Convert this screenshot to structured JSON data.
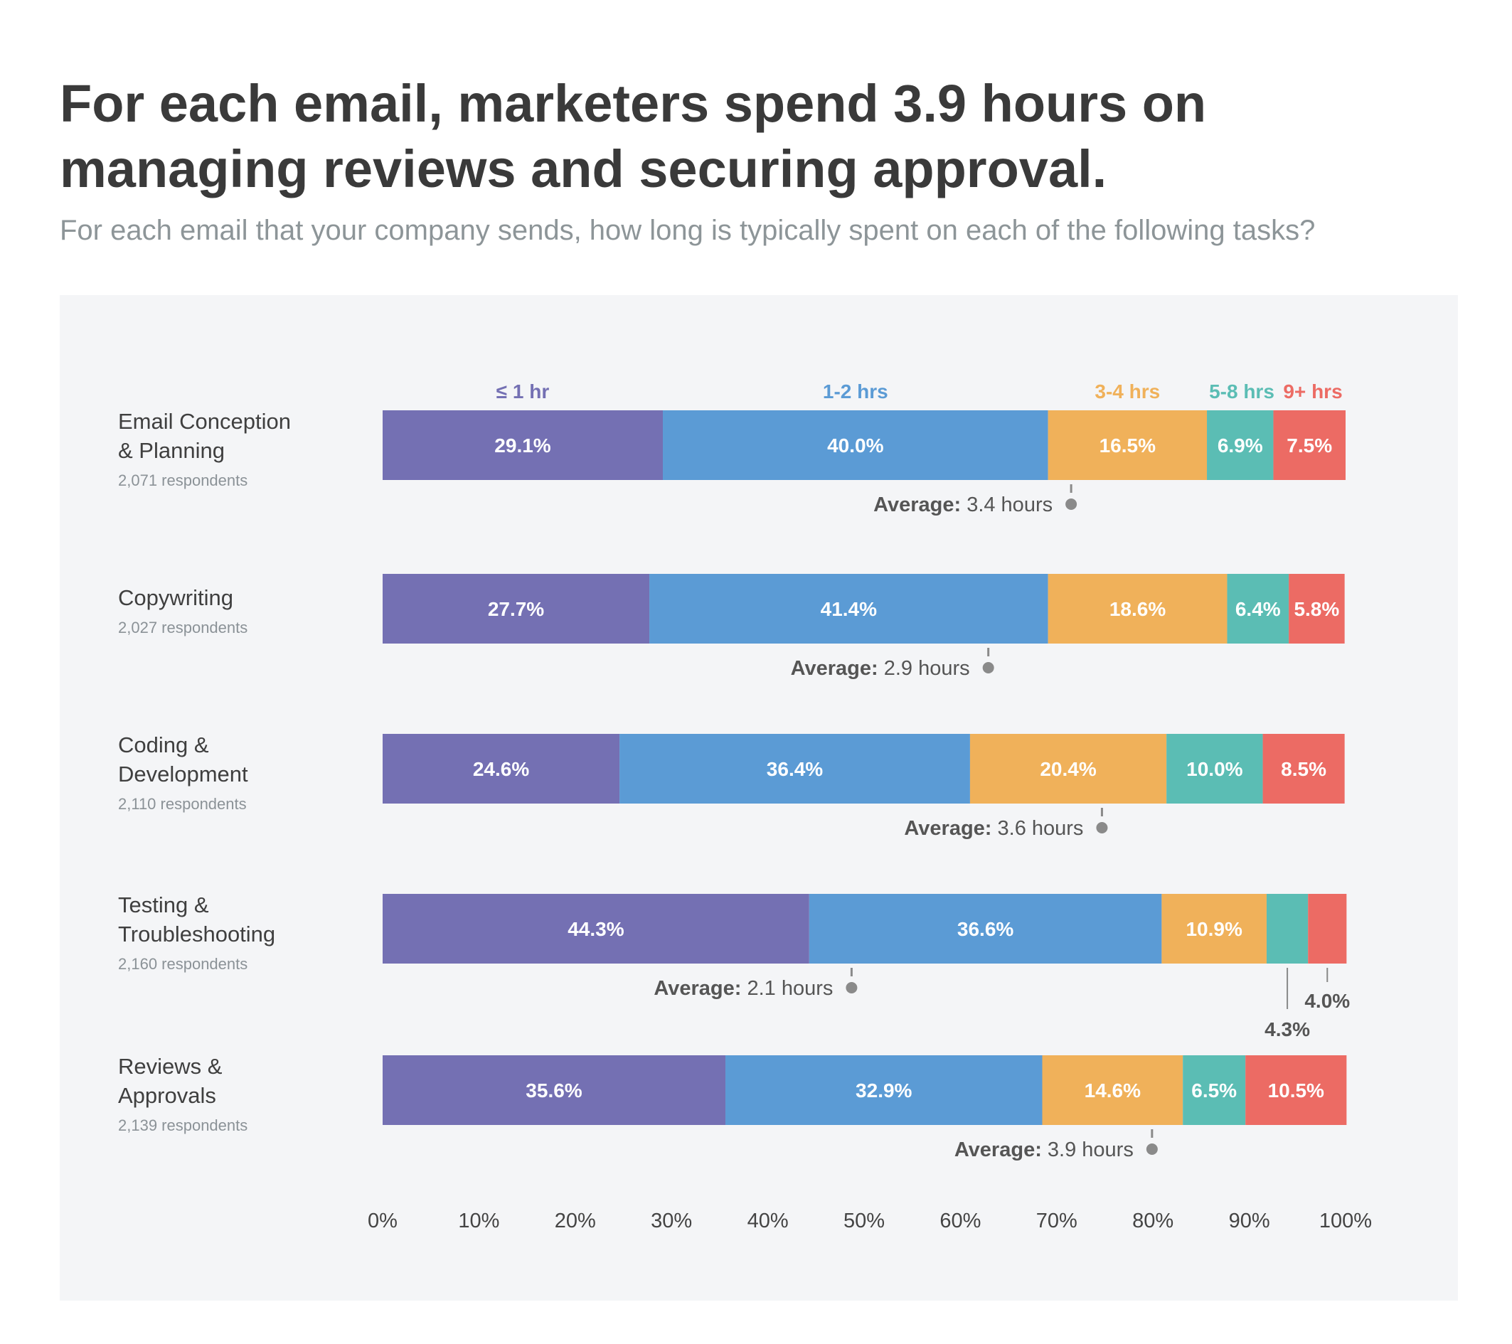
{
  "title": "For each email, marketers spend 3.9 hours on managing reviews and securing approval.",
  "subtitle": "For each email that your company sends, how long is typically spent on each of the following tasks?",
  "colors": {
    "le1hr": "#7470b3",
    "h1to2": "#5b9bd5",
    "h3to4": "#f0b15a",
    "h5to8": "#5bbdb4",
    "h9plus": "#ec6b64"
  },
  "average_label": "Average:",
  "chart_data": {
    "type": "bar",
    "orientation": "horizontal",
    "stacked": true,
    "title": "For each email, marketers spend 3.9 hours on managing reviews and securing approval.",
    "subtitle": "For each email that your company sends, how long is typically spent on each of the following tasks?",
    "legend_position": "top",
    "xlim": [
      0,
      100
    ],
    "x_ticks": [
      "0%",
      "10%",
      "20%",
      "30%",
      "40%",
      "50%",
      "60%",
      "70%",
      "80%",
      "90%",
      "100%"
    ],
    "categories": [
      {
        "name_lines": [
          "Email Conception",
          "& Planning"
        ],
        "respondents": "2,071 respondents",
        "average": "3.4 hours",
        "average_pos": 71.5
      },
      {
        "name_lines": [
          "Copywriting"
        ],
        "respondents": "2,027 respondents",
        "average": "2.9 hours",
        "average_pos": 62.9
      },
      {
        "name_lines": [
          "Coding &",
          "Development"
        ],
        "respondents": "2,110 respondents",
        "average": "3.6 hours",
        "average_pos": 74.7
      },
      {
        "name_lines": [
          "Testing &",
          "Troubleshooting"
        ],
        "respondents": "2,160 respondents",
        "average": "2.1 hours",
        "average_pos": 48.7
      },
      {
        "name_lines": [
          "Reviews &",
          "Approvals"
        ],
        "respondents": "2,139 respondents",
        "average": "3.9 hours",
        "average_pos": 79.9
      }
    ],
    "series": [
      {
        "name": "≤ 1 hr",
        "color": "#7470b3",
        "values": [
          29.1,
          27.7,
          24.6,
          44.3,
          35.6
        ],
        "labels": [
          "29.1%",
          "27.7%",
          "24.6%",
          "44.3%",
          "35.6%"
        ]
      },
      {
        "name": "1-2 hrs",
        "color": "#5b9bd5",
        "values": [
          40.0,
          41.4,
          36.4,
          36.6,
          32.9
        ],
        "labels": [
          "40.0%",
          "41.4%",
          "36.4%",
          "36.6%",
          "32.9%"
        ]
      },
      {
        "name": "3-4 hrs",
        "color": "#f0b15a",
        "values": [
          16.5,
          18.6,
          20.4,
          10.9,
          14.6
        ],
        "labels": [
          "16.5%",
          "18.6%",
          "20.4%",
          "10.9%",
          "14.6%"
        ]
      },
      {
        "name": "5-8 hrs",
        "color": "#5bbdb4",
        "values": [
          6.9,
          6.4,
          10.0,
          4.3,
          6.5
        ],
        "labels": [
          "6.9%",
          "6.4%",
          "10.0%",
          "4.3%",
          "6.5%"
        ]
      },
      {
        "name": "9+ hrs",
        "color": "#ec6b64",
        "values": [
          7.5,
          5.8,
          8.5,
          4.0,
          10.5
        ],
        "labels": [
          "7.5%",
          "5.8%",
          "8.5%",
          "4.0%",
          "10.5%"
        ]
      }
    ]
  }
}
